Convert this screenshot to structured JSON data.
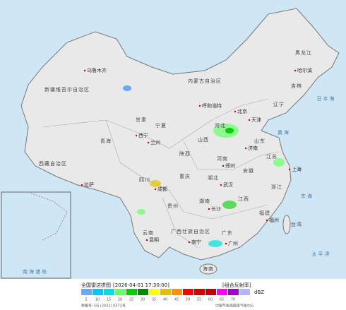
{
  "header": {
    "title": "全国雷达拼图",
    "time": "[2026-04-01 17:30:00]",
    "product": "[组合反射率]"
  },
  "legend": {
    "unit": "dBZ",
    "levels": [
      {
        "value": 5,
        "color": "#66aaff"
      },
      {
        "value": 10,
        "color": "#00c8ff"
      },
      {
        "value": 15,
        "color": "#00e0e0"
      },
      {
        "value": 20,
        "color": "#66ff66"
      },
      {
        "value": 25,
        "color": "#00d000"
      },
      {
        "value": 30,
        "color": "#008c00"
      },
      {
        "value": 35,
        "color": "#ffff00"
      },
      {
        "value": 40,
        "color": "#e6c000"
      },
      {
        "value": 45,
        "color": "#ff9000"
      },
      {
        "value": 50,
        "color": "#ff0000"
      },
      {
        "value": 55,
        "color": "#d60000"
      },
      {
        "value": 60,
        "color": "#c00000"
      },
      {
        "value": 65,
        "color": "#ff00f0"
      },
      {
        "value": 70,
        "color": "#a000c8"
      },
      {
        "value": null,
        "color": "#b4b4ff"
      }
    ]
  },
  "footer": {
    "approval": "审图号: GS (2022) 0372号",
    "agency": "中国气象局国家气象中心"
  },
  "map": {
    "provinces": [
      "新疆维吾尔自治区",
      "西藏自治区",
      "青海",
      "甘肃",
      "内蒙古自治区",
      "黑龙江",
      "吉林",
      "辽宁",
      "河北",
      "山西",
      "山东",
      "河南",
      "陕西",
      "宁夏",
      "四川",
      "重庆",
      "湖北",
      "安徽",
      "江苏",
      "浙江",
      "湖南",
      "江西",
      "福建",
      "贵州",
      "云南",
      "广西壮族自治区",
      "广东",
      "台湾",
      "海南"
    ],
    "cities": [
      "乌鲁木齐",
      "拉萨",
      "西宁",
      "兰州",
      "哈尔滨",
      "呼和浩特",
      "北京",
      "天津",
      "济南",
      "郑州",
      "武汉",
      "成都",
      "昆明",
      "南宁",
      "广州",
      "上海",
      "福州",
      "长沙"
    ],
    "seas": [
      "日本海",
      "黄海",
      "东海",
      "太平洋",
      "南海诸岛"
    ]
  }
}
